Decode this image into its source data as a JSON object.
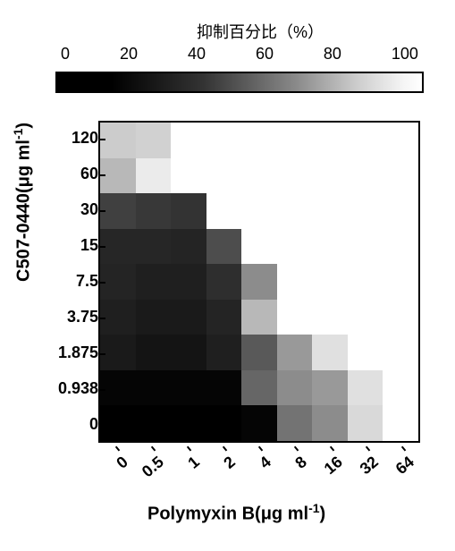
{
  "colorbar": {
    "title": "抑制百分比（%）",
    "ticks": [
      "0",
      "20",
      "40",
      "60",
      "80",
      "100"
    ],
    "min": 0,
    "max": 100,
    "gradient_colors": [
      "#000000",
      "#ffffff"
    ]
  },
  "heatmap": {
    "type": "heatmap",
    "y_label_prefix": "C507-0440(μg ml",
    "y_label_suffix": ")",
    "x_label_prefix": "Polymyxin B(μg ml",
    "x_label_suffix": ")",
    "y_categories": [
      "120",
      "60",
      "30",
      "15",
      "7.5",
      "3.75",
      "1.875",
      "0.938",
      "0"
    ],
    "x_categories": [
      "0",
      "0.5",
      "1",
      "2",
      "4",
      "8",
      "16",
      "32",
      "64"
    ],
    "values": [
      [
        80,
        82,
        100,
        100,
        100,
        100,
        100,
        100,
        100
      ],
      [
        72,
        92,
        100,
        100,
        100,
        100,
        100,
        100,
        100
      ],
      [
        25,
        22,
        20,
        100,
        100,
        100,
        100,
        100,
        100
      ],
      [
        15,
        15,
        14,
        30,
        100,
        100,
        100,
        100,
        100
      ],
      [
        14,
        12,
        12,
        18,
        55,
        100,
        100,
        100,
        100
      ],
      [
        12,
        10,
        10,
        14,
        72,
        100,
        100,
        100,
        100
      ],
      [
        10,
        8,
        8,
        12,
        35,
        60,
        88,
        100,
        100
      ],
      [
        2,
        2,
        2,
        2,
        40,
        55,
        60,
        88,
        100
      ],
      [
        0,
        0,
        0,
        0,
        2,
        45,
        55,
        85,
        100
      ]
    ],
    "cell_border": "none",
    "frame_color": "#000000",
    "low_color": "#000000",
    "high_color": "#ffffff",
    "tick_fontsize": 18,
    "tick_fontweight": "bold",
    "label_fontsize": 20,
    "label_fontweight": "bold",
    "x_tick_rotation": -40
  }
}
